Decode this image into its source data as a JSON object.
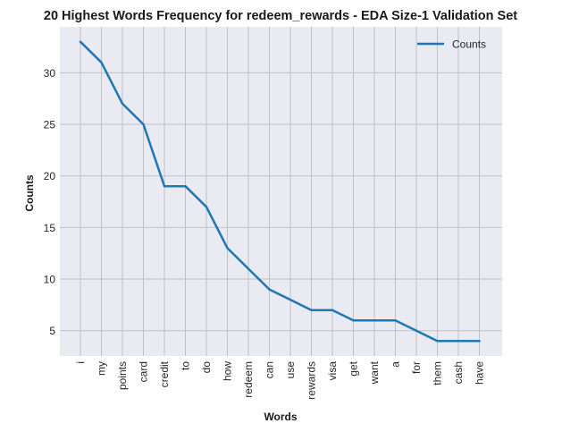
{
  "chart_data": {
    "type": "line",
    "title": "20 Highest Words Frequency for redeem_rewards - EDA Size-1 Validation Set",
    "xlabel": "Words",
    "ylabel": "Counts",
    "categories": [
      "i",
      "my",
      "points",
      "card",
      "credit",
      "to",
      "do",
      "how",
      "redeem",
      "can",
      "use",
      "rewards",
      "visa",
      "get",
      "want",
      "a",
      "for",
      "them",
      "cash",
      "have"
    ],
    "series": [
      {
        "name": "Counts",
        "values": [
          33,
          31,
          27,
          25,
          19,
          19,
          17,
          13,
          11,
          9,
          8,
          7,
          7,
          6,
          6,
          6,
          5,
          4,
          4,
          4
        ],
        "color": "#1f77b4"
      }
    ],
    "yticks": [
      5,
      10,
      15,
      20,
      25,
      30
    ],
    "ylim": [
      2.55,
      34.45
    ],
    "grid": true,
    "legend_position": "upper right",
    "plot_background": "#eaeaf2",
    "grid_color": "#c0c0c8"
  }
}
